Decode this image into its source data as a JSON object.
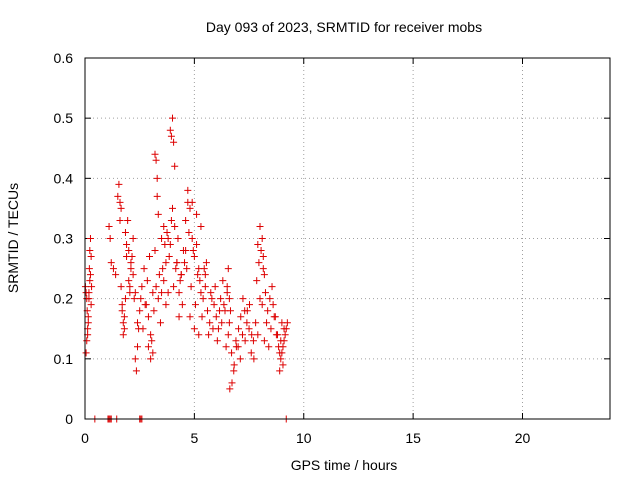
{
  "chart_data": {
    "type": "scatter",
    "title": "Day 093 of 2023, SRMTID for receiver mobs",
    "xlabel": "GPS time / hours",
    "ylabel": "SRMTID / TECUs",
    "xlim": [
      0,
      24
    ],
    "ylim": [
      0,
      0.6
    ],
    "xticks": [
      0,
      5,
      10,
      15,
      20
    ],
    "yticks": [
      0,
      0.1,
      0.2,
      0.3,
      0.4,
      0.5,
      0.6
    ],
    "x_tick_labels": [
      "0",
      "5",
      "10",
      "15",
      "20"
    ],
    "y_tick_labels": [
      "0",
      "0.1",
      "0.2",
      "0.3",
      "0.4",
      "0.5",
      "0.6"
    ],
    "grid": true,
    "marker": "+",
    "marker_color": "#dd0000",
    "series": [
      {
        "name": "mobs",
        "x": [
          0.02,
          0.05,
          0.08,
          0.1,
          0.12,
          0.15,
          0.18,
          0.2,
          0.22,
          0.25,
          0.28,
          0.3,
          0.08,
          0.15,
          0.22,
          0.28,
          0.12,
          0.18,
          0.05,
          0.25,
          1.1,
          1.15,
          1.2,
          1.3,
          1.4,
          1.5,
          1.55,
          1.6,
          1.65,
          1.7,
          1.75,
          1.8,
          1.85,
          1.9,
          1.95,
          2.0,
          2.05,
          2.1,
          2.15,
          2.2,
          2.25,
          2.3,
          2.35,
          2.4,
          2.45,
          2.5,
          2.55,
          1.6,
          1.7,
          1.8,
          1.9,
          2.0,
          2.1,
          2.2,
          2.3,
          2.4,
          1.65,
          1.75,
          1.85,
          2.05,
          2.6,
          2.7,
          2.8,
          2.9,
          3.0,
          3.1,
          3.2,
          3.3,
          3.4,
          3.5,
          3.6,
          3.7,
          3.8,
          3.9,
          4.0,
          4.1,
          4.2,
          4.3,
          4.4,
          4.5,
          2.65,
          2.75,
          2.85,
          2.95,
          3.05,
          3.15,
          3.25,
          3.35,
          3.45,
          3.55,
          3.65,
          3.75,
          3.85,
          3.95,
          4.05,
          4.15,
          4.25,
          4.35,
          4.45,
          4.55,
          3.2,
          3.25,
          3.3,
          3.9,
          3.95,
          4.0,
          4.05,
          4.1,
          3.1,
          3.35,
          3.6,
          3.8,
          4.2,
          4.4,
          4.6,
          2.9,
          3.0,
          3.5,
          3.7,
          4.3,
          4.6,
          4.7,
          4.8,
          4.9,
          5.0,
          5.1,
          5.2,
          5.3,
          5.4,
          5.5,
          5.6,
          5.7,
          5.8,
          5.9,
          6.0,
          6.1,
          6.2,
          6.3,
          6.4,
          6.5,
          4.65,
          4.75,
          4.85,
          4.95,
          5.05,
          5.15,
          5.25,
          5.35,
          5.45,
          5.55,
          5.65,
          5.75,
          5.85,
          5.95,
          6.05,
          6.15,
          6.25,
          6.35,
          6.45,
          6.55,
          4.7,
          4.9,
          5.1,
          5.3,
          5.5,
          5.0,
          5.2,
          4.8,
          6.6,
          6.7,
          6.8,
          6.9,
          7.0,
          7.1,
          7.2,
          7.3,
          7.4,
          7.5,
          7.6,
          7.7,
          6.62,
          6.72,
          6.82,
          6.92,
          7.02,
          7.12,
          7.22,
          7.32,
          7.42,
          7.52,
          7.62,
          7.72,
          6.5,
          6.55,
          6.6,
          6.65,
          7.8,
          7.9,
          8.0,
          8.1,
          8.2,
          8.3,
          8.4,
          8.5,
          8.6,
          8.7,
          8.8,
          8.9,
          9.0,
          9.1,
          9.2,
          7.85,
          7.95,
          8.05,
          8.15,
          8.25,
          8.35,
          8.45,
          8.55,
          8.65,
          8.75,
          8.85,
          8.95,
          9.05,
          9.15,
          9.25,
          7.9,
          8.0,
          8.1,
          8.15,
          8.2,
          8.9,
          9.0,
          9.1,
          8.95,
          9.05,
          0.45,
          1.05,
          1.1,
          1.15,
          1.2,
          1.45,
          2.5,
          2.55,
          2.6,
          9.2
        ],
        "y": [
          0.22,
          0.11,
          0.2,
          0.18,
          0.14,
          0.16,
          0.21,
          0.25,
          0.28,
          0.3,
          0.19,
          0.22,
          0.13,
          0.17,
          0.23,
          0.27,
          0.15,
          0.2,
          0.21,
          0.24,
          0.32,
          0.3,
          0.26,
          0.25,
          0.24,
          0.37,
          0.39,
          0.33,
          0.22,
          0.18,
          0.16,
          0.15,
          0.2,
          0.29,
          0.33,
          0.28,
          0.22,
          0.25,
          0.27,
          0.24,
          0.2,
          0.1,
          0.08,
          0.12,
          0.15,
          0.18,
          0.2,
          0.36,
          0.19,
          0.17,
          0.27,
          0.23,
          0.26,
          0.3,
          0.21,
          0.16,
          0.35,
          0.14,
          0.31,
          0.21,
          0.22,
          0.25,
          0.19,
          0.17,
          0.14,
          0.21,
          0.28,
          0.4,
          0.24,
          0.3,
          0.23,
          0.26,
          0.21,
          0.29,
          0.35,
          0.32,
          0.26,
          0.21,
          0.24,
          0.28,
          0.15,
          0.19,
          0.23,
          0.27,
          0.13,
          0.18,
          0.22,
          0.2,
          0.16,
          0.25,
          0.29,
          0.31,
          0.27,
          0.33,
          0.22,
          0.25,
          0.3,
          0.23,
          0.19,
          0.26,
          0.44,
          0.43,
          0.37,
          0.48,
          0.47,
          0.5,
          0.46,
          0.42,
          0.11,
          0.34,
          0.32,
          0.3,
          0.26,
          0.24,
          0.28,
          0.12,
          0.1,
          0.21,
          0.19,
          0.17,
          0.33,
          0.36,
          0.35,
          0.3,
          0.27,
          0.29,
          0.25,
          0.21,
          0.2,
          0.22,
          0.18,
          0.16,
          0.2,
          0.19,
          0.17,
          0.15,
          0.2,
          0.23,
          0.18,
          0.21,
          0.25,
          0.31,
          0.22,
          0.28,
          0.19,
          0.24,
          0.23,
          0.17,
          0.25,
          0.26,
          0.14,
          0.21,
          0.15,
          0.22,
          0.13,
          0.18,
          0.16,
          0.19,
          0.12,
          0.14,
          0.38,
          0.36,
          0.34,
          0.32,
          0.24,
          0.15,
          0.14,
          0.17,
          0.16,
          0.11,
          0.08,
          0.13,
          0.12,
          0.1,
          0.14,
          0.18,
          0.16,
          0.15,
          0.11,
          0.13,
          0.05,
          0.06,
          0.09,
          0.12,
          0.15,
          0.17,
          0.2,
          0.13,
          0.18,
          0.19,
          0.14,
          0.1,
          0.22,
          0.25,
          0.2,
          0.18,
          0.16,
          0.14,
          0.2,
          0.19,
          0.13,
          0.16,
          0.12,
          0.15,
          0.19,
          0.17,
          0.14,
          0.11,
          0.16,
          0.13,
          0.15,
          0.23,
          0.26,
          0.28,
          0.25,
          0.21,
          0.18,
          0.2,
          0.22,
          0.17,
          0.14,
          0.12,
          0.1,
          0.09,
          0.14,
          0.16,
          0.29,
          0.32,
          0.3,
          0.27,
          0.24,
          0.08,
          0.11,
          0.15,
          0.13,
          0.12,
          0,
          0,
          0,
          0,
          0,
          0,
          0,
          0,
          0,
          0
        ]
      }
    ]
  }
}
